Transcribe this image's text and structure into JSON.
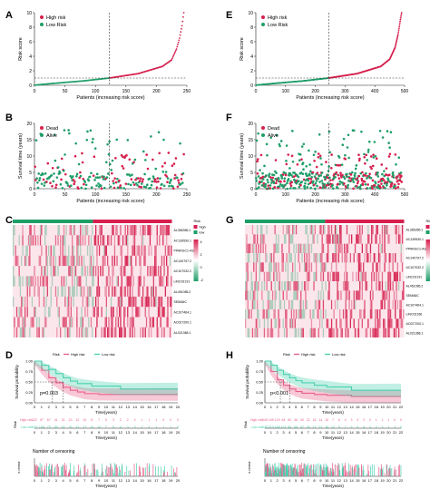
{
  "colors": {
    "high": "#d6204e",
    "low": "#1f9e68",
    "heat_high": "#d6204e",
    "heat_low": "#1f9e68",
    "km_high": "#e8608a",
    "km_low": "#4cd0b0",
    "cut": "#333333"
  },
  "panels": {
    "A": "A",
    "B": "B",
    "C": "C",
    "D": "D",
    "E": "E",
    "F": "F",
    "G": "G",
    "H": "H"
  },
  "chart_data": [
    {
      "panel": "A",
      "type": "scatter",
      "xlabel": "Patients (increasing risk score)",
      "ylabel": "Risk score",
      "xlim": [
        0,
        250
      ],
      "ylim": [
        0,
        10
      ],
      "xticks": [
        0,
        50,
        100,
        150,
        200,
        250
      ],
      "yticks": [
        0,
        2,
        4,
        6,
        8,
        10
      ],
      "n_patients": 245,
      "cutoff_patient": 123,
      "cutoff_score": 1.0,
      "curve_points": [
        [
          1,
          0.02
        ],
        [
          30,
          0.25
        ],
        [
          80,
          0.6
        ],
        [
          123,
          1.0
        ],
        [
          170,
          1.6
        ],
        [
          210,
          2.6
        ],
        [
          225,
          3.5
        ],
        [
          233,
          5.0
        ],
        [
          238,
          6.5
        ],
        [
          242,
          8.2
        ],
        [
          245,
          10.0
        ]
      ],
      "legend": [
        "High risk",
        "Low Risk"
      ]
    },
    {
      "panel": "E",
      "type": "scatter",
      "xlabel": "Patients (increasing risk score)",
      "ylabel": "Risk score",
      "xlim": [
        0,
        500
      ],
      "ylim": [
        0,
        10
      ],
      "xticks": [
        0,
        100,
        200,
        300,
        400,
        500
      ],
      "yticks": [
        0,
        2,
        4,
        6,
        8,
        10
      ],
      "n_patients": 490,
      "cutoff_patient": 245,
      "cutoff_score": 1.0,
      "curve_points": [
        [
          1,
          0.02
        ],
        [
          60,
          0.25
        ],
        [
          160,
          0.6
        ],
        [
          245,
          1.0
        ],
        [
          340,
          1.6
        ],
        [
          420,
          2.6
        ],
        [
          450,
          3.6
        ],
        [
          468,
          5.2
        ],
        [
          478,
          7.0
        ],
        [
          485,
          8.8
        ],
        [
          490,
          10.0
        ]
      ],
      "legend": [
        "High risk",
        "Low Risk"
      ]
    },
    {
      "panel": "B",
      "type": "scatter",
      "xlabel": "Patients (increasing risk score)",
      "ylabel": "Survival time (years)",
      "xlim": [
        0,
        250
      ],
      "ylim": [
        0,
        20
      ],
      "xticks": [
        0,
        50,
        100,
        150,
        200,
        250
      ],
      "yticks": [
        0,
        5,
        10,
        15,
        20
      ],
      "n_points": 245,
      "cutoff_patient": 123,
      "legend": [
        "Dead",
        "Alive"
      ]
    },
    {
      "panel": "F",
      "type": "scatter",
      "xlabel": "Patients (increasing risk score)",
      "ylabel": "Survival time (years)",
      "xlim": [
        0,
        500
      ],
      "ylim": [
        0,
        20
      ],
      "xticks": [
        0,
        100,
        200,
        300,
        400,
        500
      ],
      "yticks": [
        0,
        5,
        10,
        15,
        20
      ],
      "n_points": 490,
      "cutoff_patient": 245,
      "legend": [
        "Dead",
        "Alive"
      ]
    },
    {
      "panel": "C",
      "type": "heatmap",
      "genes": [
        "AL365356.1",
        "AC139530.1",
        "PPARGC1-AS1",
        "AC140797.2",
        "AC107032.2",
        "LINC02191",
        "AL451085.2",
        "SEMA6C",
        "AC107464.1",
        "AC027200.1",
        "AL021368.1"
      ],
      "legend_title": "Risk",
      "legend_items": [
        "high",
        "low"
      ],
      "scale_ticks": [
        "4",
        "2",
        "0",
        "-2"
      ],
      "n_columns": 245,
      "split_column": 123
    },
    {
      "panel": "G",
      "type": "heatmap",
      "genes": [
        "AL365356.1",
        "AC139530.1",
        "PPARGC1-AS1",
        "AC140797.2",
        "AC107032.2",
        "LINC02191",
        "AL451085.2",
        "SEMA6C",
        "AC107464.1",
        "LINC02166",
        "AC027200.1",
        "AL021368.1"
      ],
      "legend_title": "Risk",
      "legend_items": [
        "high",
        "low"
      ],
      "scale_ticks": [
        "4",
        "2",
        "0",
        "-2"
      ],
      "n_columns": 490,
      "split_column": 245
    },
    {
      "panel": "D",
      "type": "line",
      "ylabel": "Survival probability",
      "xlabel": "Time(years)",
      "xlim": [
        0,
        20
      ],
      "ylim": [
        0,
        1
      ],
      "xticks": [
        0,
        1,
        2,
        3,
        4,
        5,
        6,
        7,
        8,
        9,
        10,
        11,
        12,
        13,
        14,
        15,
        16,
        17,
        18,
        19,
        20
      ],
      "yticks": [
        "0.00",
        "0.25",
        "0.50",
        "0.75",
        "1.00"
      ],
      "legend_title": "Risk",
      "legend": [
        "High risk",
        "Low risk"
      ],
      "pvalue": "p=0.003",
      "series": [
        {
          "name": "High risk",
          "x": [
            0,
            1,
            2,
            3,
            4,
            5,
            6,
            7,
            9,
            20
          ],
          "y": [
            1.0,
            0.78,
            0.6,
            0.48,
            0.37,
            0.3,
            0.26,
            0.22,
            0.2,
            0.2
          ]
        },
        {
          "name": "Low risk",
          "x": [
            0,
            1,
            2,
            3,
            4,
            5,
            6,
            8,
            12,
            20
          ],
          "y": [
            1.0,
            0.9,
            0.8,
            0.7,
            0.6,
            0.52,
            0.46,
            0.4,
            0.33,
            0.33
          ]
        }
      ],
      "risk_table": {
        "label": "Risk",
        "rows": [
          {
            "name": "High risk",
            "values": [
              "122",
              "97",
              "67",
              "41",
              "31",
              "23",
              "12",
              "10",
              "8",
              "7",
              "5",
              "3",
              "3",
              "2",
              "2",
              "1",
              "1",
              "1",
              "0",
              "0",
              "0"
            ]
          },
          {
            "name": "Low risk",
            "values": [
              "123",
              "108",
              "79",
              "55",
              "42",
              "33",
              "22",
              "17",
              "13",
              "10",
              "7",
              "5",
              "4",
              "3",
              "3",
              "2",
              "2",
              "1",
              "1",
              "1",
              "0"
            ]
          }
        ]
      },
      "censoring": {
        "title": "Number of censoring",
        "ylabel": "n.censor",
        "n_marks": 150
      }
    },
    {
      "panel": "H",
      "type": "line",
      "ylabel": "Survival probability",
      "xlabel": "Time(years)",
      "xlim": [
        0,
        22
      ],
      "ylim": [
        0,
        1
      ],
      "xticks": [
        0,
        1,
        2,
        3,
        4,
        5,
        6,
        7,
        8,
        9,
        10,
        11,
        12,
        13,
        14,
        15,
        16,
        17,
        18,
        19,
        20,
        21,
        22
      ],
      "yticks": [
        "0.00",
        "0.25",
        "0.50",
        "0.75",
        "1.00"
      ],
      "legend_title": "Risk",
      "legend": [
        "High risk",
        "Low risk"
      ],
      "pvalue": "p<0.001",
      "series": [
        {
          "name": "High risk",
          "x": [
            0,
            1,
            2,
            3,
            4,
            5,
            6,
            8,
            10,
            14,
            22
          ],
          "y": [
            1.0,
            0.75,
            0.55,
            0.42,
            0.33,
            0.27,
            0.23,
            0.2,
            0.18,
            0.15,
            0.15
          ]
        },
        {
          "name": "Low risk",
          "x": [
            0,
            1,
            2,
            3,
            4,
            5,
            6,
            8,
            10,
            14,
            22
          ],
          "y": [
            1.0,
            0.9,
            0.78,
            0.68,
            0.6,
            0.53,
            0.48,
            0.42,
            0.38,
            0.3,
            0.3
          ]
        }
      ],
      "risk_table": {
        "label": "Risk",
        "rows": [
          {
            "name": "High risk",
            "values": [
              "245",
              "195",
              "129",
              "84",
              "60",
              "46",
              "30",
              "22",
              "18",
              "14",
              "10",
              "7",
              "6",
              "4",
              "3",
              "3",
              "2",
              "2",
              "1",
              "1",
              "1",
              "0",
              "0"
            ]
          },
          {
            "name": "Low risk",
            "values": [
              "245",
              "213",
              "158",
              "113",
              "86",
              "66",
              "47",
              "36",
              "27",
              "21",
              "16",
              "12",
              "9",
              "7",
              "6",
              "5",
              "4",
              "3",
              "2",
              "2",
              "1",
              "1",
              "0"
            ]
          }
        ]
      },
      "censoring": {
        "title": "Number of censoring",
        "ylabel": "n.censor",
        "n_marks": 300
      }
    }
  ]
}
